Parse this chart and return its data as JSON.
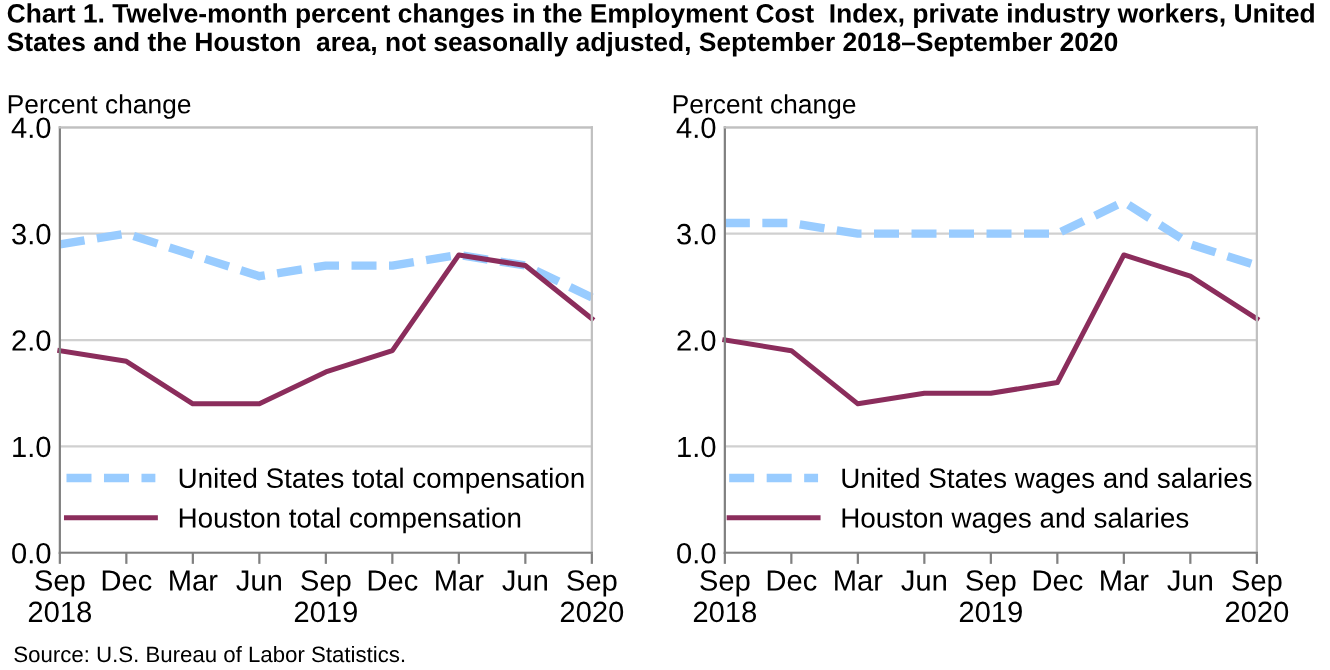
{
  "chart_data": [
    {
      "type": "line",
      "title": "Chart 1. Twelve-month percent changes in the Employment Cost  Index, private industry workers, United States and the Houston  area, not seasonally adjusted, September 2018–September 2020",
      "ylabel": "Percent change",
      "categories": [
        "Sep\n2018",
        "Dec",
        "Mar",
        "Jun",
        "Sep\n2019",
        "Dec",
        "Mar",
        "Jun",
        "Sep\n2020"
      ],
      "series": [
        {
          "name": "United States total compensation",
          "color": "#99ccff",
          "line_style": "dashed",
          "values": [
            2.9,
            3.0,
            2.8,
            2.6,
            2.7,
            2.7,
            2.8,
            2.7,
            2.4
          ]
        },
        {
          "name": "Houston total compensation",
          "color": "#8b2d5c",
          "line_style": "solid",
          "values": [
            1.9,
            1.8,
            1.4,
            1.4,
            1.7,
            1.9,
            2.8,
            2.7,
            2.2
          ]
        }
      ],
      "ylim": [
        0.0,
        4.0
      ],
      "yticks": [
        {
          "value": 0,
          "label": "0.0"
        },
        {
          "value": 1,
          "label": "1.0"
        },
        {
          "value": 2,
          "label": "2.0"
        },
        {
          "value": 3,
          "label": "3.0"
        },
        {
          "value": 4,
          "label": "4.0"
        }
      ],
      "grid": "y",
      "legend": "bottom",
      "annotations": [
        "Source: U.S. Bureau of Labor Statistics."
      ]
    },
    {
      "type": "line",
      "ylabel": "Percent change",
      "categories": [
        "Sep\n2018",
        "Dec",
        "Mar",
        "Jun",
        "Sep\n2019",
        "Dec",
        "Mar",
        "Jun",
        "Sep\n2020"
      ],
      "series": [
        {
          "name": "United States wages and salaries",
          "color": "#99ccff",
          "line_style": "dashed",
          "values": [
            3.1,
            3.1,
            3.0,
            3.0,
            3.0,
            3.0,
            3.3,
            2.9,
            2.7
          ]
        },
        {
          "name": "Houston wages and salaries",
          "color": "#8b2d5c",
          "line_style": "solid",
          "values": [
            2.0,
            1.9,
            1.4,
            1.5,
            1.5,
            1.6,
            2.8,
            2.6,
            2.2
          ]
        }
      ],
      "ylim": [
        0.0,
        4.0
      ],
      "yticks": [
        {
          "value": 0,
          "label": "0.0"
        },
        {
          "value": 1,
          "label": "1.0"
        },
        {
          "value": 2,
          "label": "2.0"
        },
        {
          "value": 3,
          "label": "3.0"
        },
        {
          "value": 4,
          "label": "4.0"
        }
      ],
      "grid": "y",
      "legend": "bottom"
    }
  ]
}
